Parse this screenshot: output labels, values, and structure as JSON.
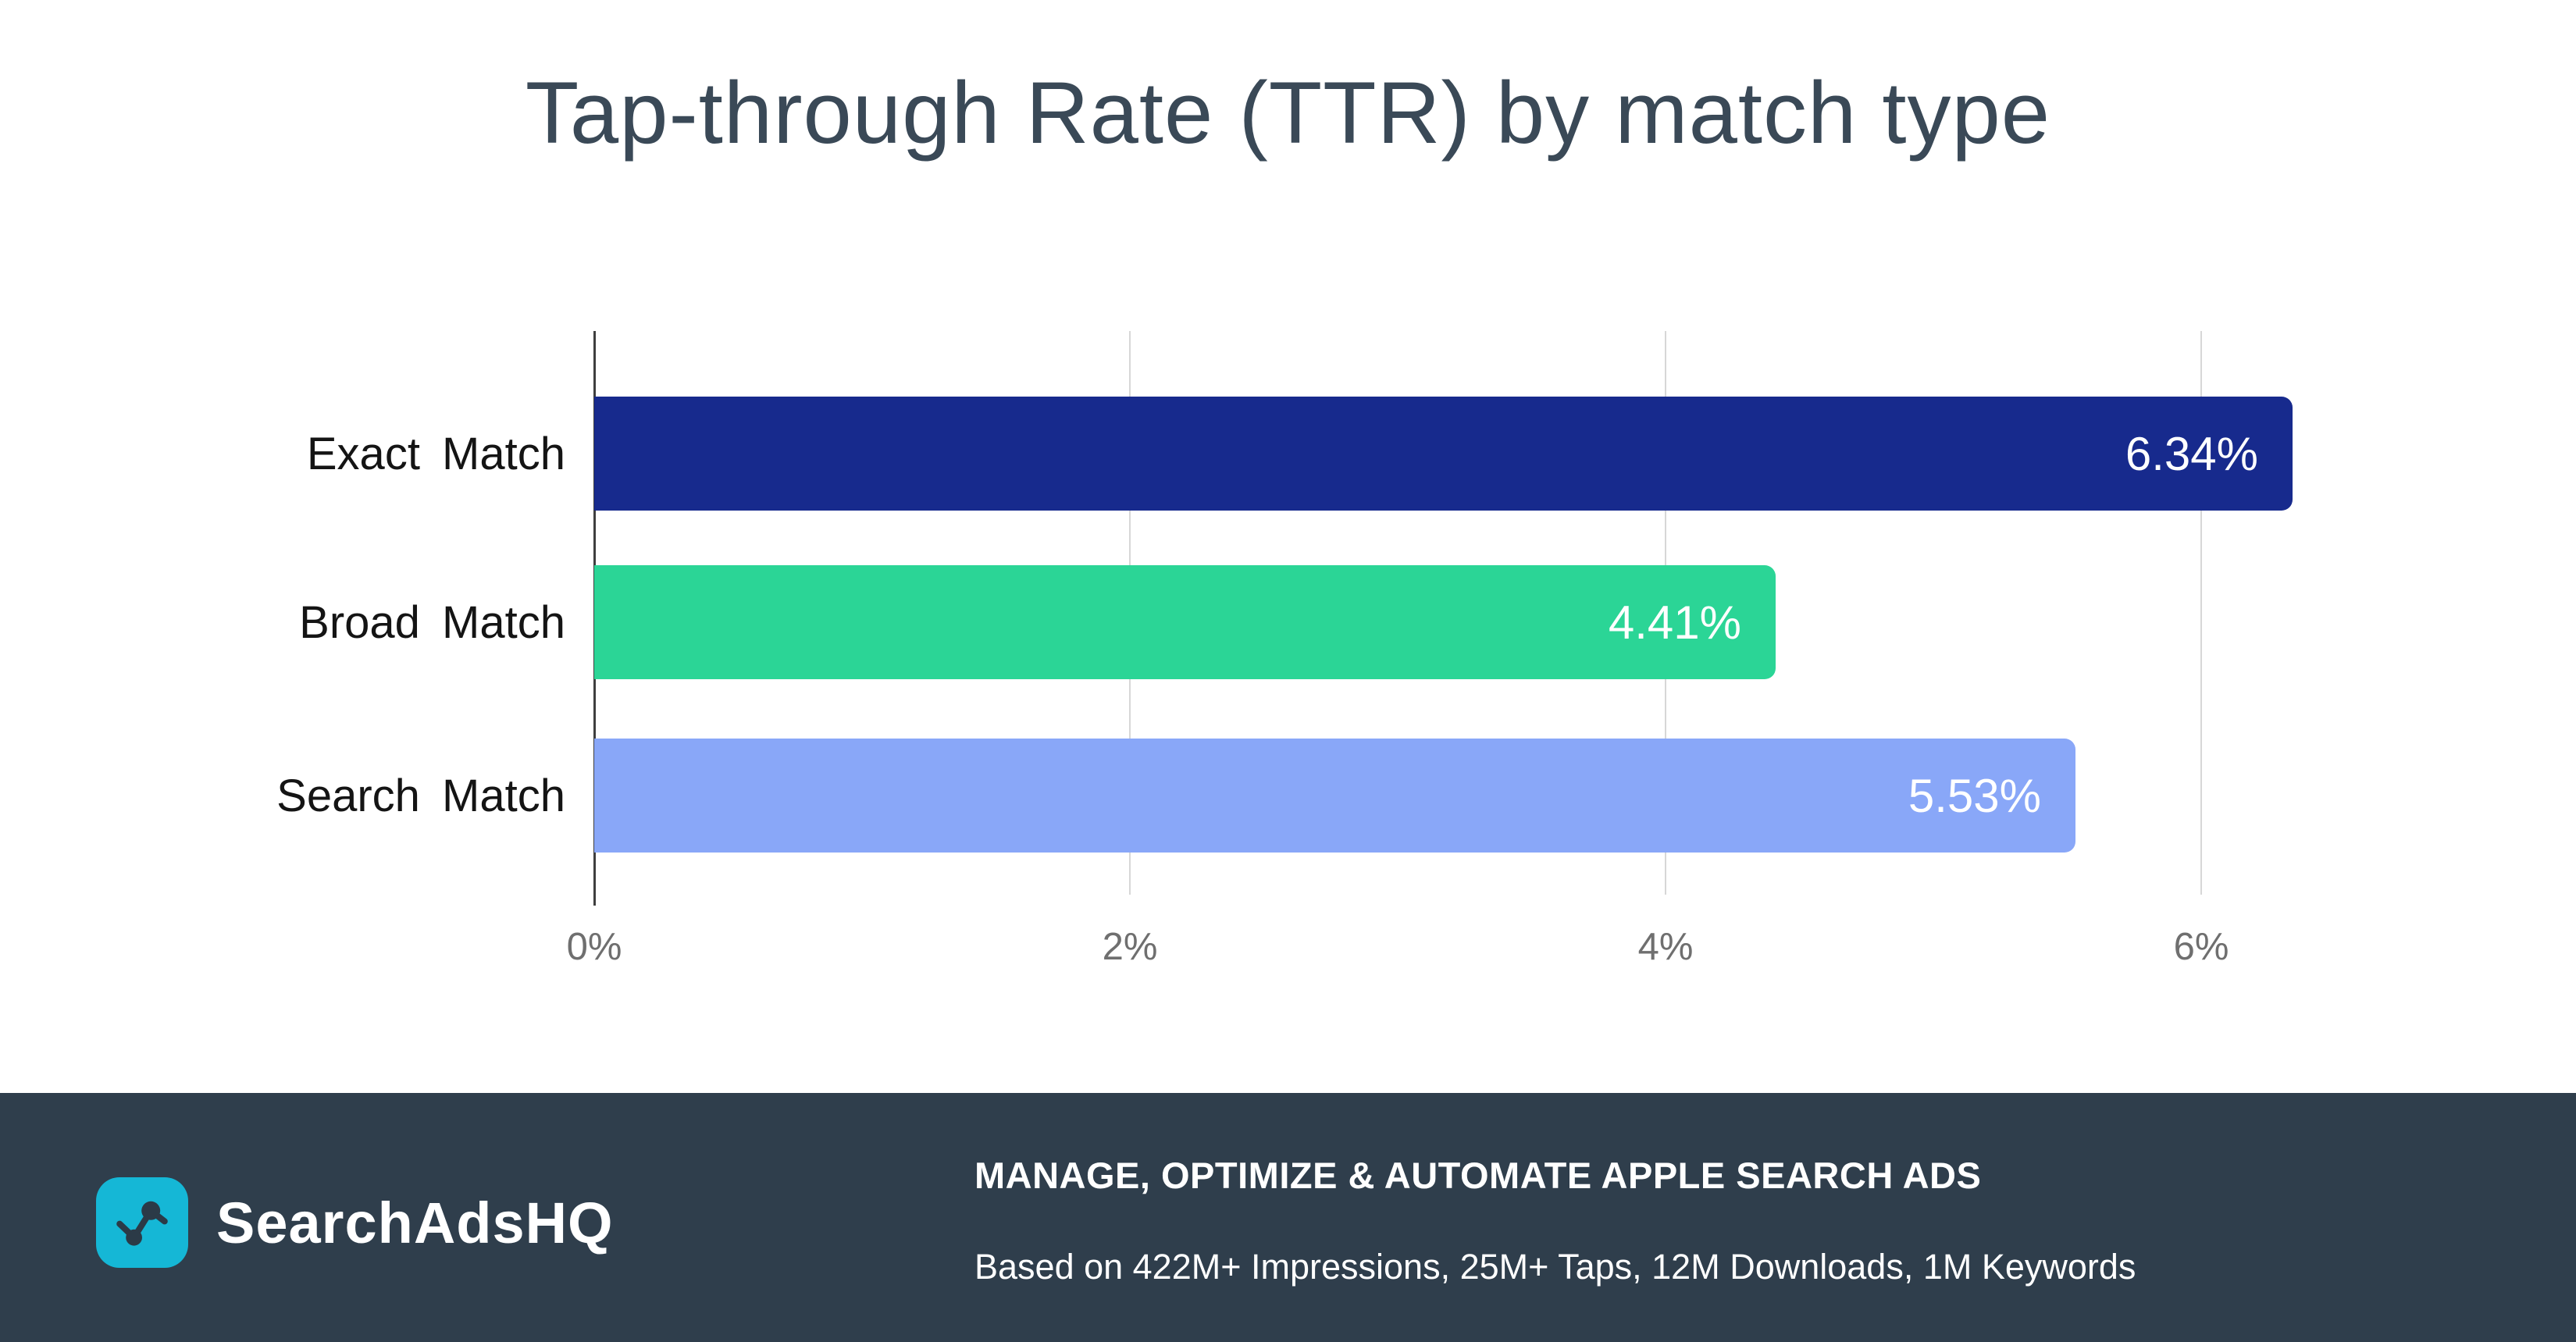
{
  "title": "Tap-through Rate (TTR) by match type",
  "chart_data": {
    "type": "bar",
    "orientation": "horizontal",
    "title": "Tap-through Rate (TTR) by match type",
    "categories": [
      "Exact Match",
      "Broad Match",
      "Search Match"
    ],
    "values": [
      6.34,
      4.41,
      5.53
    ],
    "value_labels": [
      "6.34%",
      "4.41%",
      "5.53%"
    ],
    "value_suffix": "%",
    "bar_colors": [
      "#172A8D",
      "#2BD596",
      "#89A7F8"
    ],
    "x_ticks": [
      "0%",
      "2%",
      "4%",
      "6%"
    ],
    "x_tick_values": [
      0,
      2,
      4,
      6
    ],
    "xlim": [
      0,
      6.8
    ],
    "grid": true,
    "legend": "none",
    "label_color": "#141414",
    "tick_color": "#6F6F6F",
    "title_color": "#3A4957"
  },
  "footer": {
    "brand": "SearchAdsHQ",
    "logo_icon": "line-chart-icon",
    "headline": "MANAGE, OPTIMIZE & AUTOMATE APPLE SEARCH ADS",
    "subtext": "Based on 422M+ Impressions, 25M+ Taps, 12M Downloads, 1M Keywords",
    "colors": {
      "background": "#2F3E4C",
      "logo": "#15B7D6",
      "icon": "#2B3A47",
      "text": "#FFFFFF"
    }
  }
}
